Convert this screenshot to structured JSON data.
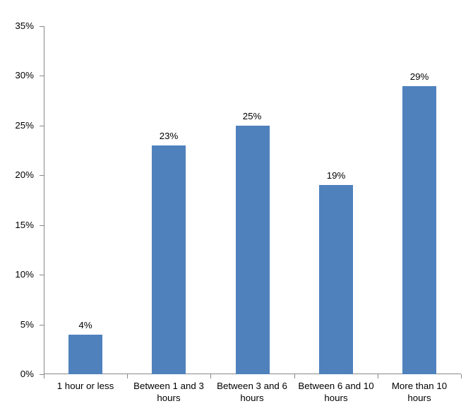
{
  "chart_data": {
    "type": "bar",
    "title": "",
    "xlabel": "",
    "ylabel": "",
    "categories": [
      "1 hour or less",
      "Between 1 and 3 hours",
      "Between 3 and 6 hours",
      "Between 6 and 10 hours",
      "More than 10 hours"
    ],
    "values": [
      4,
      23,
      25,
      19,
      29
    ],
    "value_labels": [
      "4%",
      "23%",
      "25%",
      "19%",
      "29%"
    ],
    "ylim": [
      0,
      35
    ],
    "ytick_step": 5,
    "ytick_labels": [
      "0%",
      "5%",
      "10%",
      "15%",
      "20%",
      "25%",
      "30%",
      "35%"
    ],
    "grid": false,
    "legend": false,
    "colors": {
      "bar": "#4F81BD",
      "axis": "#898989",
      "text": "#000000",
      "background": "#FFFFFF"
    }
  }
}
